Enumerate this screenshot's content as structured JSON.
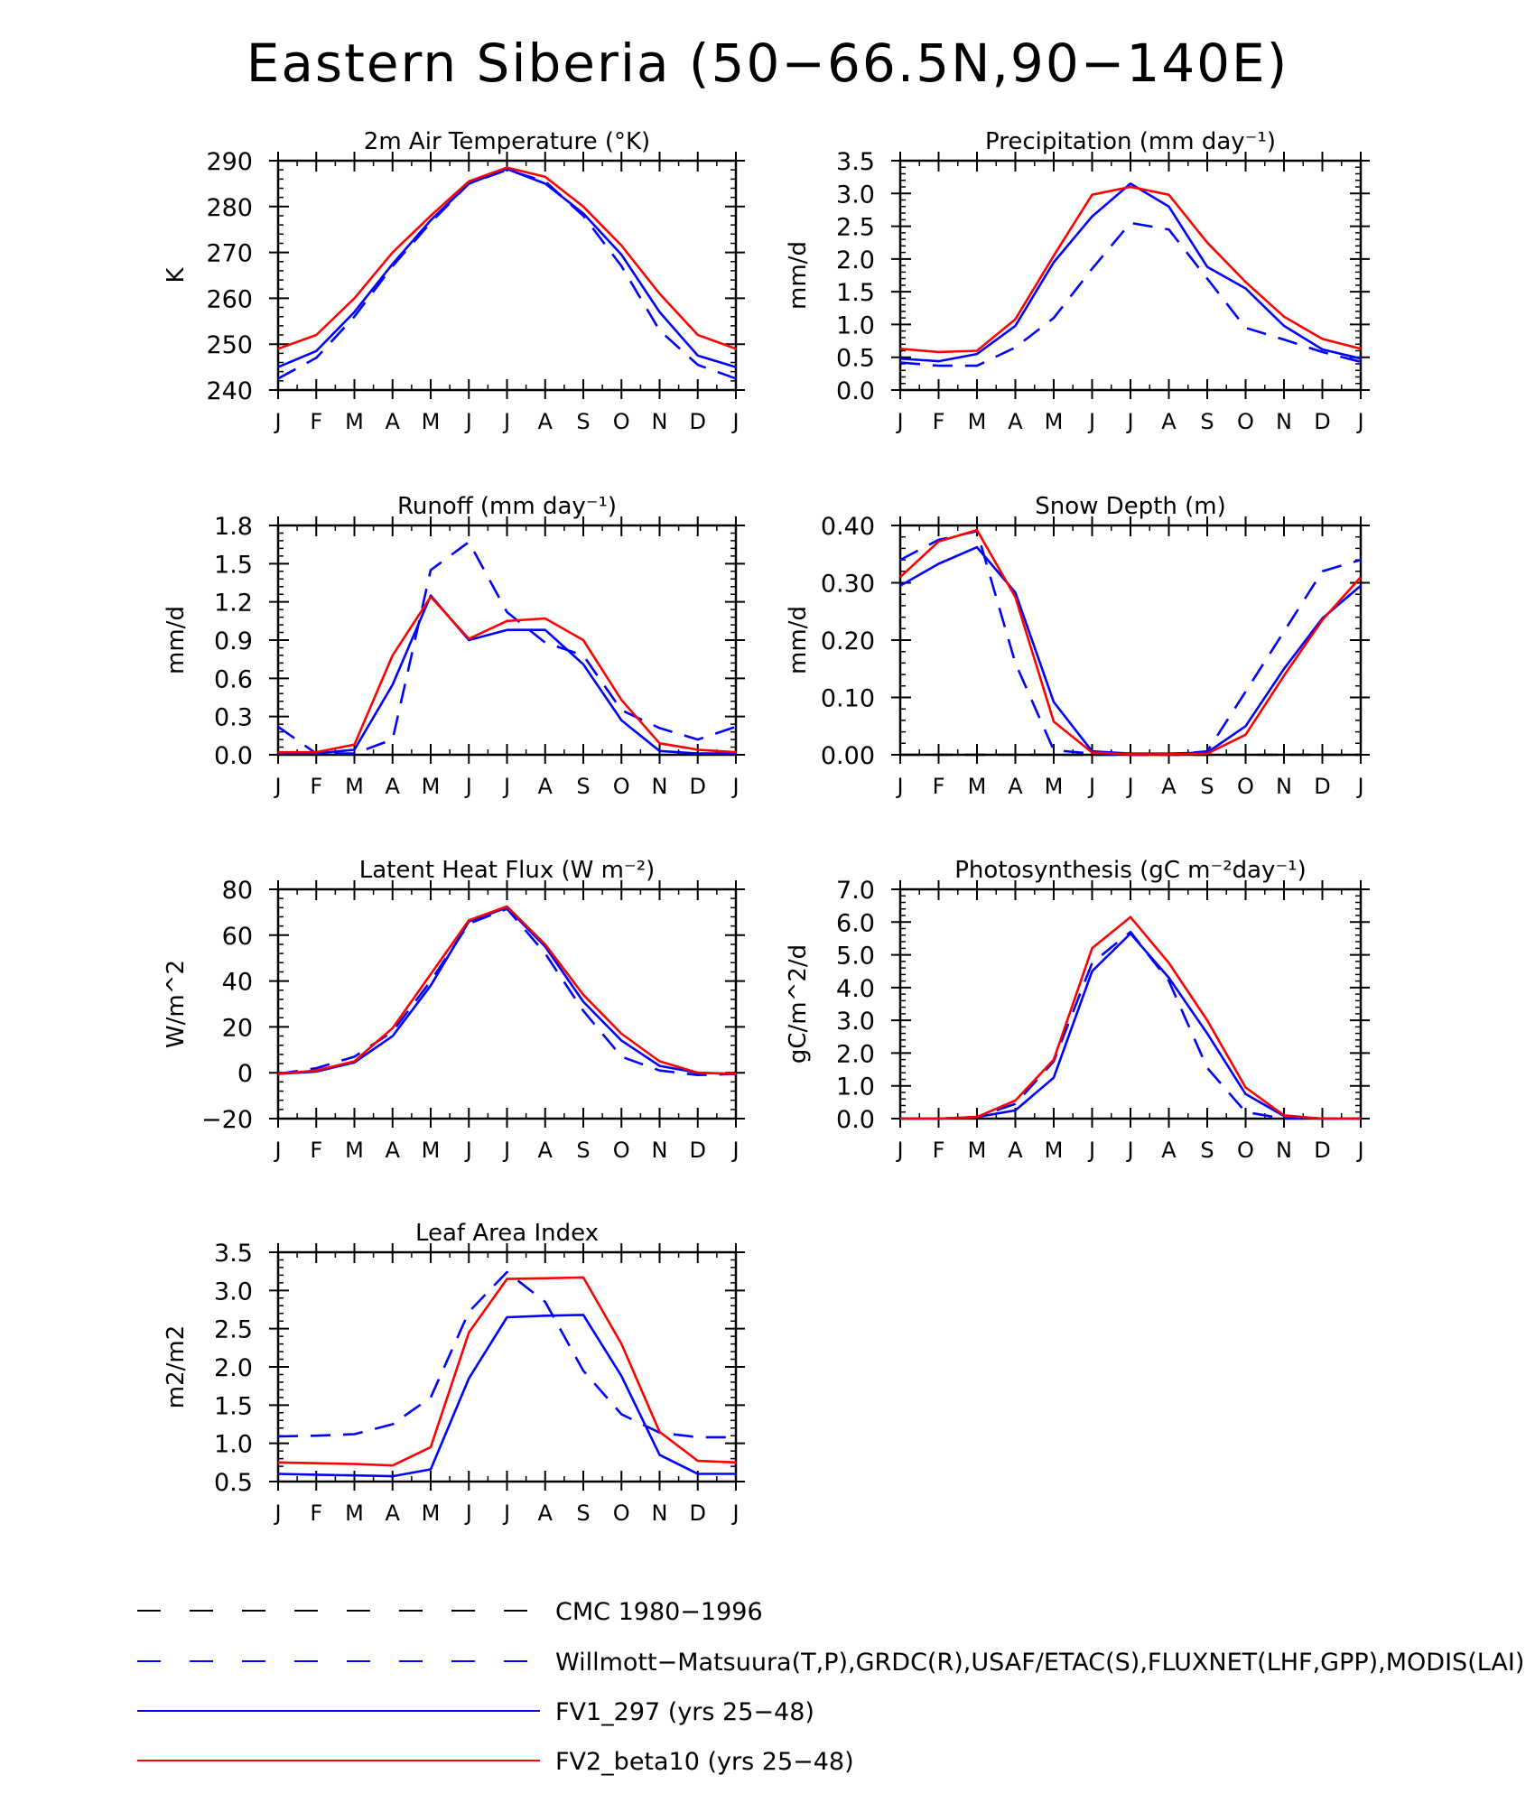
{
  "page_title": "Eastern Siberia (50−66.5N,90−140E)",
  "colors": {
    "red": "#ff0000",
    "blue": "#0000ff",
    "black": "#000000"
  },
  "legend": [
    {
      "label": "CMC 1980−1996",
      "color": "#000000",
      "dash": true
    },
    {
      "label": "Willmott−Matsuura(T,P),GRDC(R),USAF/ETAC(S),FLUXNET(LHF,GPP),MODIS(LAI)",
      "color": "#0000ff",
      "dash": true
    },
    {
      "label": "FV1_297 (yrs 25−48)",
      "color": "#0000ff",
      "dash": false
    },
    {
      "label": "FV2_beta10 (yrs 25−48)",
      "color": "#ff0000",
      "dash": false
    }
  ],
  "chart_data": [
    {
      "type": "line",
      "title": "2m Air Temperature (°K)",
      "xlabel": "",
      "ylabel": "K",
      "categories": [
        "J",
        "F",
        "M",
        "A",
        "M",
        "J",
        "J",
        "A",
        "S",
        "O",
        "N",
        "D",
        "J"
      ],
      "ylim": [
        240,
        290
      ],
      "yticks": [
        240,
        250,
        260,
        270,
        280,
        290
      ],
      "ytick_labels": [
        "240",
        "250",
        "260",
        "270",
        "280",
        "290"
      ],
      "series": [
        {
          "name": "Willmott-Matsuura (obs)",
          "color": "#0000ff",
          "dash": true,
          "values": [
            242.5,
            247,
            256,
            267,
            276.5,
            285,
            288,
            285.5,
            278,
            267,
            253,
            245.5,
            242.5
          ]
        },
        {
          "name": "FV1_297",
          "color": "#0000ff",
          "dash": false,
          "values": [
            245,
            248.5,
            257,
            267.5,
            277,
            285,
            288.2,
            285,
            278.5,
            269.5,
            257,
            247.5,
            245
          ]
        },
        {
          "name": "FV2_beta10",
          "color": "#ff0000",
          "dash": false,
          "values": [
            249,
            252,
            260,
            270,
            278,
            285.5,
            288.5,
            286.5,
            280,
            271.5,
            261,
            252,
            249
          ]
        }
      ]
    },
    {
      "type": "line",
      "title": "Precipitation (mm day⁻¹)",
      "xlabel": "",
      "ylabel": "mm/d",
      "categories": [
        "J",
        "F",
        "M",
        "A",
        "M",
        "J",
        "J",
        "A",
        "S",
        "O",
        "N",
        "D",
        "J"
      ],
      "ylim": [
        0,
        3.5
      ],
      "yticks": [
        0,
        0.5,
        1.0,
        1.5,
        2.0,
        2.5,
        3.0,
        3.5
      ],
      "ytick_labels": [
        "0.0",
        "0.5",
        "1.0",
        "1.5",
        "2.0",
        "2.5",
        "3.0",
        "3.5"
      ],
      "series": [
        {
          "name": "Willmott-Matsuura (obs)",
          "color": "#0000ff",
          "dash": true,
          "values": [
            0.42,
            0.37,
            0.37,
            0.65,
            1.1,
            1.85,
            2.55,
            2.45,
            1.7,
            0.95,
            0.77,
            0.58,
            0.43
          ]
        },
        {
          "name": "FV1_297",
          "color": "#0000ff",
          "dash": false,
          "values": [
            0.48,
            0.44,
            0.55,
            0.98,
            1.95,
            2.65,
            3.15,
            2.8,
            1.88,
            1.55,
            0.98,
            0.62,
            0.48
          ]
        },
        {
          "name": "FV2_beta10",
          "color": "#ff0000",
          "dash": false,
          "values": [
            0.63,
            0.58,
            0.6,
            1.08,
            2.05,
            2.98,
            3.1,
            2.98,
            2.25,
            1.65,
            1.12,
            0.78,
            0.63
          ]
        }
      ]
    },
    {
      "type": "line",
      "title": "Runoff (mm day⁻¹)",
      "xlabel": "",
      "ylabel": "mm/d",
      "categories": [
        "J",
        "F",
        "M",
        "A",
        "M",
        "J",
        "J",
        "A",
        "S",
        "O",
        "N",
        "D",
        "J"
      ],
      "ylim": [
        0,
        1.8
      ],
      "yticks": [
        0,
        0.3,
        0.6,
        0.9,
        1.2,
        1.5,
        1.8
      ],
      "ytick_labels": [
        "0.0",
        "0.3",
        "0.6",
        "0.9",
        "1.2",
        "1.5",
        "1.8"
      ],
      "series": [
        {
          "name": "GRDC (obs)",
          "color": "#0000ff",
          "dash": true,
          "values": [
            0.22,
            0.01,
            0.01,
            0.12,
            1.45,
            1.67,
            1.12,
            0.88,
            0.78,
            0.35,
            0.21,
            0.12,
            0.22
          ]
        },
        {
          "name": "FV1_297",
          "color": "#0000ff",
          "dash": false,
          "values": [
            0.01,
            0.01,
            0.04,
            0.55,
            1.25,
            0.9,
            0.98,
            0.98,
            0.71,
            0.27,
            0.03,
            0.01,
            0.01
          ]
        },
        {
          "name": "FV2_beta10",
          "color": "#ff0000",
          "dash": false,
          "values": [
            0.02,
            0.02,
            0.08,
            0.78,
            1.24,
            0.91,
            1.05,
            1.07,
            0.9,
            0.43,
            0.09,
            0.04,
            0.02
          ]
        }
      ]
    },
    {
      "type": "line",
      "title": "Snow Depth (m)",
      "xlabel": "",
      "ylabel": "mm/d",
      "categories": [
        "J",
        "F",
        "M",
        "A",
        "M",
        "J",
        "J",
        "A",
        "S",
        "O",
        "N",
        "D",
        "J"
      ],
      "ylim": [
        0,
        0.4
      ],
      "yticks": [
        0,
        0.1,
        0.2,
        0.3,
        0.4
      ],
      "ytick_labels": [
        "0.00",
        "0.10",
        "0.20",
        "0.30",
        "0.40"
      ],
      "series": [
        {
          "name": "CMC 1980-1996",
          "color": "#000000",
          "dash": true,
          "values": [
            0,
            0,
            0,
            0,
            0,
            0,
            0,
            0,
            0,
            0,
            0,
            0,
            0
          ]
        },
        {
          "name": "USAF/ETAC (obs)",
          "color": "#0000ff",
          "dash": true,
          "values": [
            0.34,
            0.375,
            0.39,
            0.16,
            0.008,
            0.002,
            0.0,
            0.0,
            0.006,
            0.11,
            0.215,
            0.32,
            0.34
          ]
        },
        {
          "name": "FV1_297",
          "color": "#0000ff",
          "dash": false,
          "values": [
            0.295,
            0.333,
            0.362,
            0.283,
            0.092,
            0.006,
            0.002,
            0.002,
            0.004,
            0.05,
            0.15,
            0.238,
            0.295
          ]
        },
        {
          "name": "FV2_beta10",
          "color": "#ff0000",
          "dash": false,
          "values": [
            0.31,
            0.372,
            0.392,
            0.275,
            0.058,
            0.004,
            0.001,
            0.001,
            0.002,
            0.035,
            0.138,
            0.235,
            0.31
          ]
        }
      ]
    },
    {
      "type": "line",
      "title": "Latent Heat Flux (W m⁻²)",
      "xlabel": "",
      "ylabel": "W/m^2",
      "categories": [
        "J",
        "F",
        "M",
        "A",
        "M",
        "J",
        "J",
        "A",
        "S",
        "O",
        "N",
        "D",
        "J"
      ],
      "ylim": [
        -20,
        80
      ],
      "yticks": [
        -20,
        0,
        20,
        40,
        60,
        80
      ],
      "ytick_labels": [
        "−20",
        "0",
        "20",
        "40",
        "60",
        "80"
      ],
      "series": [
        {
          "name": "FLUXNET (obs)",
          "color": "#0000ff",
          "dash": true,
          "values": [
            -0.5,
            2,
            7,
            18,
            40,
            65,
            71.5,
            52,
            27,
            7,
            1,
            -1,
            -0.5
          ]
        },
        {
          "name": "FV1_297",
          "color": "#0000ff",
          "dash": false,
          "values": [
            -0.5,
            0.5,
            4.5,
            16,
            38,
            66,
            72,
            55,
            31,
            14,
            3,
            0,
            -0.5
          ]
        },
        {
          "name": "FV2_beta10",
          "color": "#ff0000",
          "dash": false,
          "values": [
            -0.5,
            1,
            5,
            19.5,
            43,
            66.5,
            72.5,
            56,
            34,
            17,
            5,
            0,
            -0.5
          ]
        }
      ]
    },
    {
      "type": "line",
      "title": "Photosynthesis (gC m⁻²day⁻¹)",
      "xlabel": "",
      "ylabel": "gC/m^2/d",
      "categories": [
        "J",
        "F",
        "M",
        "A",
        "M",
        "J",
        "J",
        "A",
        "S",
        "O",
        "N",
        "D",
        "J"
      ],
      "ylim": [
        0,
        7
      ],
      "yticks": [
        0,
        1,
        2,
        3,
        4,
        5,
        6,
        7
      ],
      "ytick_labels": [
        "0.0",
        "1.0",
        "2.0",
        "3.0",
        "4.0",
        "5.0",
        "6.0",
        "7.0"
      ],
      "series": [
        {
          "name": "FLUXNET (obs)",
          "color": "#0000ff",
          "dash": true,
          "values": [
            0,
            0,
            0.05,
            0.45,
            1.75,
            4.75,
            5.7,
            4.2,
            1.55,
            0.2,
            0,
            0,
            0
          ]
        },
        {
          "name": "FV1_297",
          "color": "#0000ff",
          "dash": false,
          "values": [
            0,
            0,
            0.05,
            0.25,
            1.25,
            4.5,
            5.65,
            4.3,
            2.6,
            0.75,
            0.08,
            0,
            0
          ]
        },
        {
          "name": "FV2_beta10",
          "color": "#ff0000",
          "dash": false,
          "values": [
            0,
            0,
            0.05,
            0.55,
            1.8,
            5.2,
            6.15,
            4.75,
            3.0,
            0.95,
            0.1,
            0,
            0
          ]
        }
      ]
    },
    {
      "type": "line",
      "title": "Leaf Area Index",
      "xlabel": "",
      "ylabel": "m2/m2",
      "categories": [
        "J",
        "F",
        "M",
        "A",
        "M",
        "J",
        "J",
        "A",
        "S",
        "O",
        "N",
        "D",
        "J"
      ],
      "ylim": [
        0.5,
        3.5
      ],
      "yticks": [
        0.5,
        1.0,
        1.5,
        2.0,
        2.5,
        3.0,
        3.5
      ],
      "ytick_labels": [
        "0.5",
        "1.0",
        "1.5",
        "2.0",
        "2.5",
        "3.0",
        "3.5"
      ],
      "series": [
        {
          "name": "MODIS (obs)",
          "color": "#0000ff",
          "dash": true,
          "values": [
            1.09,
            1.1,
            1.12,
            1.25,
            1.6,
            2.72,
            3.24,
            2.85,
            1.95,
            1.38,
            1.14,
            1.08,
            1.08
          ]
        },
        {
          "name": "FV1_297",
          "color": "#0000ff",
          "dash": false,
          "values": [
            0.6,
            0.59,
            0.58,
            0.57,
            0.66,
            1.85,
            2.65,
            2.67,
            2.68,
            1.88,
            0.85,
            0.6,
            0.6
          ]
        },
        {
          "name": "FV2_beta10",
          "color": "#ff0000",
          "dash": false,
          "values": [
            0.75,
            0.74,
            0.73,
            0.71,
            0.95,
            2.45,
            3.15,
            3.16,
            3.17,
            2.3,
            1.15,
            0.77,
            0.75
          ]
        }
      ]
    }
  ]
}
